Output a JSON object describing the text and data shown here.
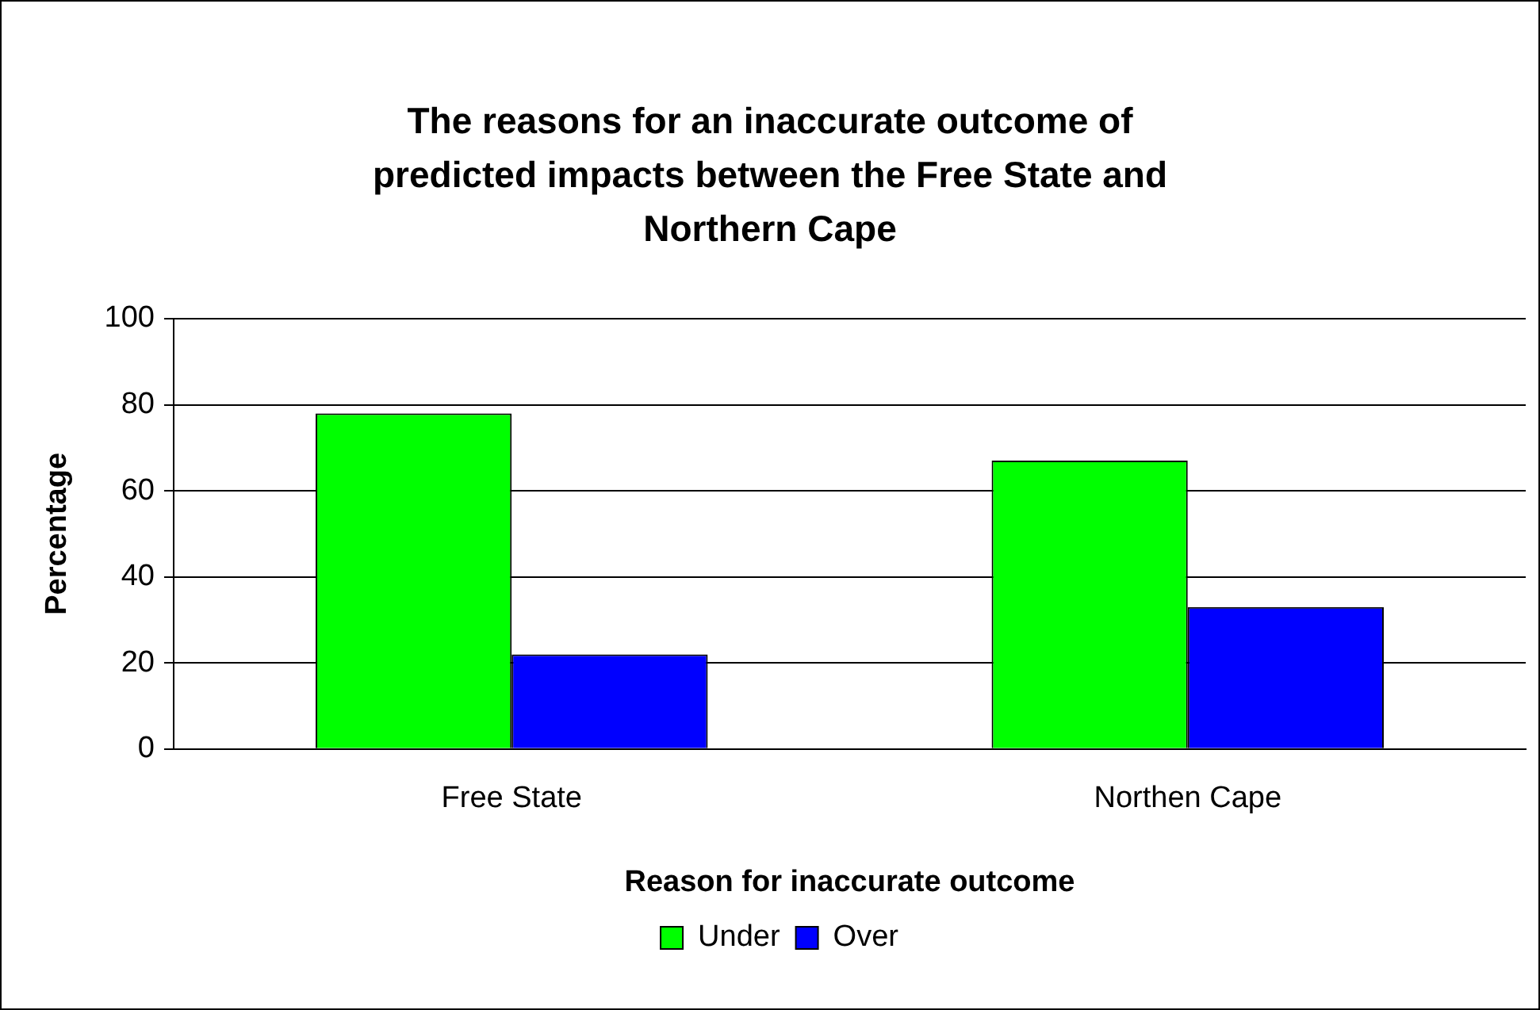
{
  "chart_data": {
    "type": "bar",
    "title": "The reasons for an inaccurate outcome of predicted impacts between the Free State and Northern Cape",
    "xlabel": "Reason for inaccurate outcome",
    "ylabel": "Percentage",
    "categories": [
      "Free State",
      "Northen Cape"
    ],
    "series": [
      {
        "name": "Under",
        "color": "#00ff00",
        "values": [
          78,
          67
        ]
      },
      {
        "name": "Over",
        "color": "#0000ff",
        "values": [
          22,
          33
        ]
      }
    ],
    "ylim": [
      0,
      100
    ],
    "yticks": [
      0,
      20,
      40,
      60,
      80,
      100
    ],
    "grid": "y",
    "legend": "bottom"
  }
}
